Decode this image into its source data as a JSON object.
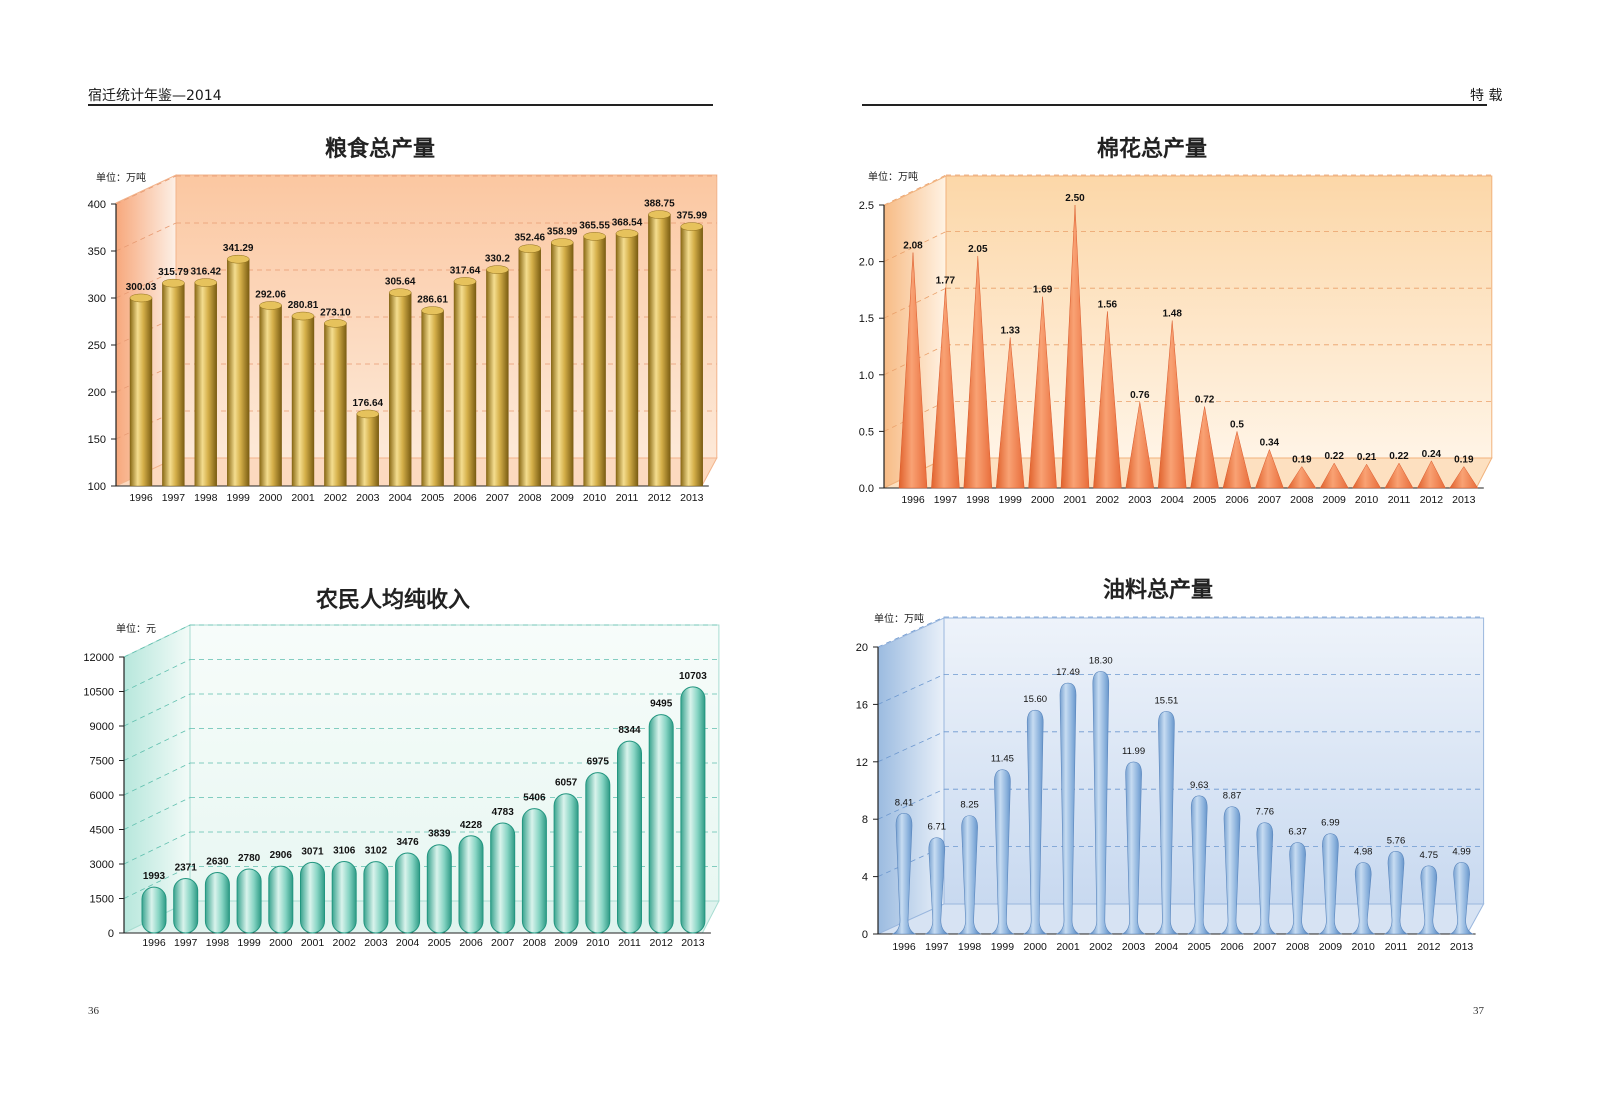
{
  "header": {
    "left_title": "宿迁统计年鉴—2014",
    "right_title": "特  载",
    "page_left": "36",
    "page_right": "37"
  },
  "colors": {
    "grain": "#c9a43a",
    "cotton": "#f0875a",
    "income": "#6ccdb8",
    "oil": "#7aaad6"
  },
  "chart_data": [
    {
      "id": "grain",
      "type": "bar",
      "title": "粮食总产量",
      "unit": "单位：万吨",
      "ylim": [
        100,
        400
      ],
      "yticks": [
        100,
        150,
        200,
        250,
        300,
        350,
        400
      ],
      "ytick_labels": [
        "100",
        "150",
        "200",
        "250",
        "300",
        "350",
        "400"
      ],
      "categories": [
        "1996",
        "1997",
        "1998",
        "1999",
        "2000",
        "2001",
        "2002",
        "2003",
        "2004",
        "2005",
        "2006",
        "2007",
        "2008",
        "2009",
        "2010",
        "2011",
        "2012",
        "2013"
      ],
      "values": [
        300.03,
        315.79,
        316.42,
        341.29,
        292.06,
        280.81,
        273.1,
        176.64,
        305.64,
        286.61,
        317.64,
        330.2,
        352.46,
        358.99,
        365.55,
        368.54,
        388.75,
        375.99
      ],
      "labels": [
        "300.03",
        "315.79",
        "316.42",
        "341.29",
        "292.06",
        "280.81",
        "273.10",
        "176.64",
        "305.64",
        "286.61",
        "317.64",
        "330.2",
        "352.46",
        "358.99",
        "365.55",
        "368.54",
        "388.75",
        "375.99"
      ],
      "grid": true
    },
    {
      "id": "cotton",
      "type": "bar",
      "title": "棉花总产量",
      "unit": "单位：万吨",
      "ylim": [
        0,
        2.5
      ],
      "yticks": [
        0,
        0.5,
        1.0,
        1.5,
        2.0,
        2.5
      ],
      "ytick_labels": [
        "0.0",
        "0.5",
        "1.0",
        "1.5",
        "2.0",
        "2.5"
      ],
      "categories": [
        "1996",
        "1997",
        "1998",
        "1999",
        "2000",
        "2001",
        "2002",
        "2003",
        "2004",
        "2005",
        "2006",
        "2007",
        "2008",
        "2009",
        "2010",
        "2011",
        "2012",
        "2013"
      ],
      "values": [
        2.08,
        1.77,
        2.05,
        1.33,
        1.69,
        2.5,
        1.56,
        0.76,
        1.48,
        0.72,
        0.5,
        0.34,
        0.19,
        0.22,
        0.21,
        0.22,
        0.24,
        0.19
      ],
      "labels": [
        "2.08",
        "1.77",
        "2.05",
        "1.33",
        "1.69",
        "2.50",
        "1.56",
        "0.76",
        "1.48",
        "0.72",
        "0.5",
        "0.34",
        "0.19",
        "0.22",
        "0.21",
        "0.22",
        "0.24",
        "0.19"
      ],
      "grid": true
    },
    {
      "id": "income",
      "type": "bar",
      "title": "农民人均纯收入",
      "unit": "单位：元",
      "ylim": [
        0,
        12000
      ],
      "yticks": [
        0,
        1500,
        3000,
        4500,
        6000,
        7500,
        9000,
        10500,
        12000
      ],
      "ytick_labels": [
        "0",
        "1500",
        "3000",
        "4500",
        "6000",
        "7500",
        "9000",
        "10500",
        "12000"
      ],
      "categories": [
        "1996",
        "1997",
        "1998",
        "1999",
        "2000",
        "2001",
        "2002",
        "2003",
        "2004",
        "2005",
        "2006",
        "2007",
        "2008",
        "2009",
        "2010",
        "2011",
        "2012",
        "2013"
      ],
      "values": [
        1993,
        2371,
        2630,
        2780,
        2906,
        3071,
        3106,
        3102,
        3476,
        3839,
        4228,
        4783,
        5406,
        6057,
        6975,
        8344,
        9495,
        10703
      ],
      "labels": [
        "1993",
        "2371",
        "2630",
        "2780",
        "2906",
        "3071",
        "3106",
        "3102",
        "3476",
        "3839",
        "4228",
        "4783",
        "5406",
        "6057",
        "6975",
        "8344",
        "9495",
        "10703"
      ],
      "grid": true
    },
    {
      "id": "oil",
      "type": "bar",
      "title": "油料总产量",
      "unit": "单位：万吨",
      "ylim": [
        0,
        20
      ],
      "yticks": [
        0,
        4,
        8,
        12,
        16,
        20
      ],
      "ytick_labels": [
        "0",
        "4",
        "8",
        "12",
        "16",
        "20"
      ],
      "categories": [
        "1996",
        "1997",
        "1998",
        "1999",
        "2000",
        "2001",
        "2002",
        "2003",
        "2004",
        "2005",
        "2006",
        "2007",
        "2008",
        "2009",
        "2010",
        "2011",
        "2012",
        "2013"
      ],
      "values": [
        8.41,
        6.71,
        8.25,
        11.45,
        15.6,
        17.49,
        18.3,
        11.99,
        15.51,
        9.63,
        8.87,
        7.76,
        6.37,
        6.99,
        4.98,
        5.76,
        4.75,
        4.99
      ],
      "labels": [
        "8.41",
        "6.71",
        "8.25",
        "11.45",
        "15.60",
        "17.49",
        "18.30",
        "11.99",
        "15.51",
        "9.63",
        "8.87",
        "7.76",
        "6.37",
        "6.99",
        "4.98",
        "5.76",
        "4.75",
        "4.99"
      ],
      "grid": true
    }
  ]
}
